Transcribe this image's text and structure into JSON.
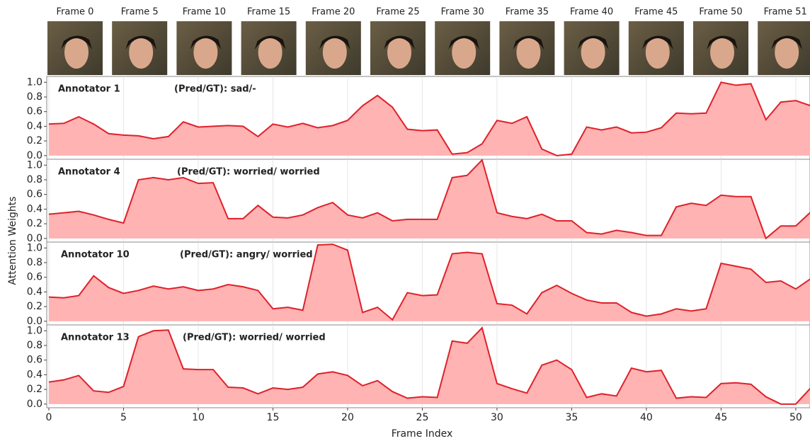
{
  "frames": [
    "Frame 0",
    "Frame 5",
    "Frame 10",
    "Frame 15",
    "Frame 20",
    "Frame 25",
    "Frame 30",
    "Frame 35",
    "Frame 40",
    "Frame 45",
    "Frame 50",
    "Frame 51"
  ],
  "xlabel": "Frame Index",
  "ylabel": "Attention Weights",
  "chart_data": [
    {
      "type": "area",
      "title": "Annotator 1",
      "annotation": "(Pred/GT): sad/-",
      "color": "#e0202a",
      "fill": "#ffb3b3",
      "x": [
        0,
        1,
        2,
        3,
        4,
        5,
        6,
        7,
        8,
        9,
        10,
        11,
        12,
        13,
        14,
        15,
        16,
        17,
        18,
        19,
        20,
        21,
        22,
        23,
        24,
        25,
        26,
        27,
        28,
        29,
        30,
        31,
        32,
        33,
        34,
        35,
        36,
        37,
        38,
        39,
        40,
        41,
        42,
        43,
        44,
        45,
        46,
        47,
        48,
        49,
        50,
        51
      ],
      "values": [
        0.43,
        0.44,
        0.53,
        0.43,
        0.3,
        0.28,
        0.27,
        0.23,
        0.26,
        0.46,
        0.39,
        0.4,
        0.41,
        0.4,
        0.26,
        0.43,
        0.39,
        0.44,
        0.38,
        0.41,
        0.48,
        0.68,
        0.82,
        0.66,
        0.36,
        0.34,
        0.35,
        0.02,
        0.04,
        0.16,
        0.48,
        0.44,
        0.53,
        0.09,
        0.0,
        0.02,
        0.39,
        0.35,
        0.39,
        0.31,
        0.32,
        0.38,
        0.58,
        0.57,
        0.58,
        1.0,
        0.96,
        0.98,
        0.49,
        0.73,
        0.75,
        0.68
      ],
      "xlim": [
        0,
        51
      ],
      "ylim": [
        -0.05,
        1.08
      ],
      "yticks": [
        {
          "value": 0,
          "label": "0.0"
        },
        0.2,
        0.4,
        0.6,
        0.8,
        {
          "value": 1,
          "label": "1.0"
        }
      ],
      "grid": true
    },
    {
      "type": "area",
      "title": "Annotator 4",
      "annotation": "(Pred/GT): worried/ worried",
      "color": "#e0202a",
      "fill": "#ffb3b3",
      "x": [
        0,
        1,
        2,
        3,
        4,
        5,
        6,
        7,
        8,
        9,
        10,
        11,
        12,
        13,
        14,
        15,
        16,
        17,
        18,
        19,
        20,
        21,
        22,
        23,
        24,
        25,
        26,
        27,
        28,
        29,
        30,
        31,
        32,
        33,
        34,
        35,
        36,
        37,
        38,
        39,
        40,
        41,
        42,
        43,
        44,
        45,
        46,
        47,
        48,
        49,
        50,
        51
      ],
      "values": [
        0.33,
        0.35,
        0.37,
        0.32,
        0.26,
        0.21,
        0.8,
        0.83,
        0.8,
        0.83,
        0.75,
        0.76,
        0.27,
        0.27,
        0.45,
        0.29,
        0.28,
        0.32,
        0.42,
        0.49,
        0.32,
        0.28,
        0.35,
        0.24,
        0.26,
        0.26,
        0.26,
        0.83,
        0.86,
        1.07,
        0.35,
        0.3,
        0.27,
        0.33,
        0.24,
        0.24,
        0.08,
        0.06,
        0.11,
        0.08,
        0.04,
        0.04,
        0.43,
        0.48,
        0.45,
        0.59,
        0.57,
        0.57,
        0.0,
        0.17,
        0.17,
        0.36
      ],
      "xlim": [
        0,
        51
      ],
      "ylim": [
        -0.05,
        1.08
      ],
      "yticks": [
        {
          "value": 0,
          "label": "0.0"
        },
        0.2,
        0.4,
        0.6,
        0.8,
        {
          "value": 1,
          "label": "1.0"
        }
      ],
      "grid": true
    },
    {
      "type": "area",
      "title": "Annotator 10",
      "annotation": "(Pred/GT): angry/ worried",
      "color": "#e0202a",
      "fill": "#ffb3b3",
      "x": [
        0,
        1,
        2,
        3,
        4,
        5,
        6,
        7,
        8,
        9,
        10,
        11,
        12,
        13,
        14,
        15,
        16,
        17,
        18,
        19,
        20,
        21,
        22,
        23,
        24,
        25,
        26,
        27,
        28,
        29,
        30,
        31,
        32,
        33,
        34,
        35,
        36,
        37,
        38,
        39,
        40,
        41,
        42,
        43,
        44,
        45,
        46,
        47,
        48,
        49,
        50,
        51
      ],
      "values": [
        0.33,
        0.32,
        0.35,
        0.62,
        0.46,
        0.38,
        0.42,
        0.48,
        0.44,
        0.47,
        0.42,
        0.44,
        0.5,
        0.47,
        0.42,
        0.17,
        0.19,
        0.15,
        1.04,
        1.05,
        0.97,
        0.12,
        0.19,
        0.02,
        0.39,
        0.35,
        0.36,
        0.92,
        0.94,
        0.92,
        0.24,
        0.22,
        0.1,
        0.39,
        0.49,
        0.38,
        0.29,
        0.25,
        0.25,
        0.12,
        0.07,
        0.1,
        0.17,
        0.14,
        0.17,
        0.79,
        0.75,
        0.71,
        0.53,
        0.55,
        0.44,
        0.58
      ],
      "xlim": [
        0,
        51
      ],
      "ylim": [
        -0.05,
        1.08
      ],
      "yticks": [
        {
          "value": 0,
          "label": "0.0"
        },
        0.2,
        0.4,
        0.6,
        0.8,
        {
          "value": 1,
          "label": "1.0"
        }
      ],
      "grid": true
    },
    {
      "type": "area",
      "title": "Annotator 13",
      "annotation": "(Pred/GT): worried/ worried",
      "color": "#e0202a",
      "fill": "#ffb3b3",
      "x": [
        0,
        1,
        2,
        3,
        4,
        5,
        6,
        7,
        8,
        9,
        10,
        11,
        12,
        13,
        14,
        15,
        16,
        17,
        18,
        19,
        20,
        21,
        22,
        23,
        24,
        25,
        26,
        27,
        28,
        29,
        30,
        31,
        32,
        33,
        34,
        35,
        36,
        37,
        38,
        39,
        40,
        41,
        42,
        43,
        44,
        45,
        46,
        47,
        48,
        49,
        50,
        51
      ],
      "values": [
        0.3,
        0.33,
        0.39,
        0.18,
        0.16,
        0.24,
        0.92,
        1.0,
        1.01,
        0.48,
        0.47,
        0.47,
        0.23,
        0.22,
        0.14,
        0.22,
        0.2,
        0.23,
        0.41,
        0.44,
        0.39,
        0.25,
        0.32,
        0.17,
        0.08,
        0.1,
        0.09,
        0.86,
        0.83,
        1.04,
        0.28,
        0.21,
        0.15,
        0.53,
        0.6,
        0.47,
        0.09,
        0.14,
        0.11,
        0.49,
        0.44,
        0.46,
        0.08,
        0.1,
        0.09,
        0.28,
        0.29,
        0.27,
        0.1,
        0.0,
        0.0,
        0.22
      ],
      "xlim": [
        0,
        51
      ],
      "ylim": [
        -0.05,
        1.08
      ],
      "xticks": [
        0,
        5,
        10,
        15,
        20,
        25,
        30,
        35,
        40,
        45,
        50
      ],
      "yticks": [
        {
          "value": 0,
          "label": "0.0"
        },
        0.2,
        0.4,
        0.6,
        0.8,
        {
          "value": 1,
          "label": "1.0"
        }
      ],
      "grid": true
    }
  ]
}
